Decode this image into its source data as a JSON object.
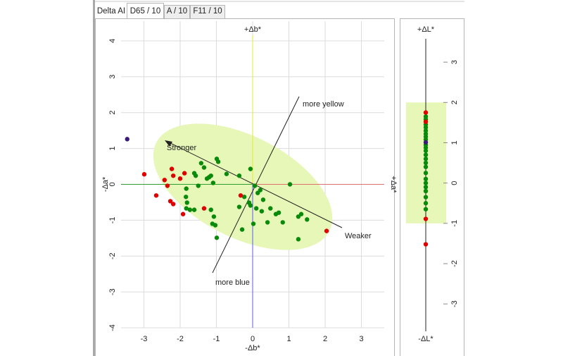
{
  "tabs": [
    "Delta AI",
    "D65 / 10",
    "A / 10",
    "F11 / 10"
  ],
  "selected_tab": 1,
  "chart_data": [
    {
      "type": "scatter",
      "top_label": "+Δb*",
      "bottom_label": "-Δb*",
      "left_label": "-Δa*",
      "right_label": "+Δa*",
      "annotations": [
        "more yellow",
        "Stronger",
        "Weaker",
        "more blue"
      ],
      "xlim": [
        -3.63,
        3.63
      ],
      "ylim": [
        -4,
        4.55
      ],
      "xticks": [
        -3,
        -2,
        -1,
        0,
        1,
        2,
        3
      ],
      "yticks": [
        -4,
        -3,
        -2,
        -1,
        0,
        1,
        2,
        3,
        4
      ],
      "grid": true,
      "series": [
        {
          "color": "#0a8a0a",
          "x": [
            -0.99,
            -0.95,
            -1.42,
            -1.34,
            -1.26,
            -1.2,
            -1.15,
            -1.61,
            -1.57,
            -0.72,
            -0.37,
            -0.06,
            -1.09,
            -1.5,
            -1.83,
            -1.83,
            -1.73,
            -1.61,
            -1.81,
            -1.84,
            -1.15,
            -1.07,
            -1.03,
            -0.99,
            -1.11,
            -0.23,
            -0.1,
            0.06,
            0.21,
            0.14,
            0.29,
            0.25,
            0.1,
            0.49,
            0.64,
            0.41,
            0.83,
            0.72,
            -0.29,
            0.02,
            1.26,
            1.34,
            1.03,
            1.5,
            1.26,
            -0.06,
            -0.37
          ],
          "values": [
            0.71,
            0.63,
            0.59,
            0.47,
            0.16,
            0.2,
            0.24,
            0.31,
            0.24,
            0.29,
            0.24,
            0.43,
            0.04,
            -0.04,
            -0.12,
            -0.67,
            -0.71,
            -0.71,
            -0.51,
            -0.35,
            -0.71,
            -0.9,
            -1.14,
            -1.49,
            -1.1,
            -0.35,
            -0.51,
            -0.04,
            -0.16,
            -0.24,
            -0.43,
            -0.75,
            -0.67,
            -0.67,
            -0.83,
            -1.06,
            -1.06,
            -0.79,
            -1.26,
            -1.1,
            -0.9,
            -0.83,
            0,
            -0.98,
            -1.53,
            -0.59,
            -0.63
          ]
        },
        {
          "color": "#e00000",
          "x": [
            -2.99,
            -2.66,
            -2.43,
            -2.35,
            -2.23,
            -2.19,
            -2.0,
            -1.88,
            -2.27,
            -2.19,
            -1.92,
            -1.34,
            -0.33,
            2.04
          ],
          "values": [
            0.28,
            -0.31,
            0.12,
            -0.04,
            0.43,
            0.24,
            0.16,
            0.31,
            -0.47,
            -0.55,
            -0.83,
            -0.67,
            -0.31,
            -1.3
          ]
        },
        {
          "color": "#3a1a78",
          "x": [
            -3.46
          ],
          "values": [
            1.26
          ]
        }
      ]
    },
    {
      "type": "strip",
      "top_label": "+ΔL*",
      "bottom_label": "-ΔL*",
      "ylim": [
        -3.68,
        3.58
      ],
      "yticks": [
        -3,
        -2,
        -1,
        0,
        1,
        2,
        3
      ],
      "band": [
        -1,
        2
      ],
      "band_color": "#e6f7b8",
      "series": [
        {
          "color": "#0a8a0a",
          "values": [
            1.65,
            1.58,
            1.45,
            1.38,
            1.3,
            1.22,
            1.15,
            1.08,
            0.95,
            0.88,
            0.8,
            0.7,
            0.6,
            0.5,
            0.4,
            0.25,
            0.1,
            0.0,
            -0.1,
            -0.2,
            -0.35,
            -0.5,
            -0.65
          ]
        },
        {
          "color": "#e00000",
          "values": [
            1.75,
            1.52,
            -0.89,
            -1.52
          ]
        },
        {
          "color": "#3a1a78",
          "values": [
            1.01
          ]
        }
      ]
    }
  ]
}
